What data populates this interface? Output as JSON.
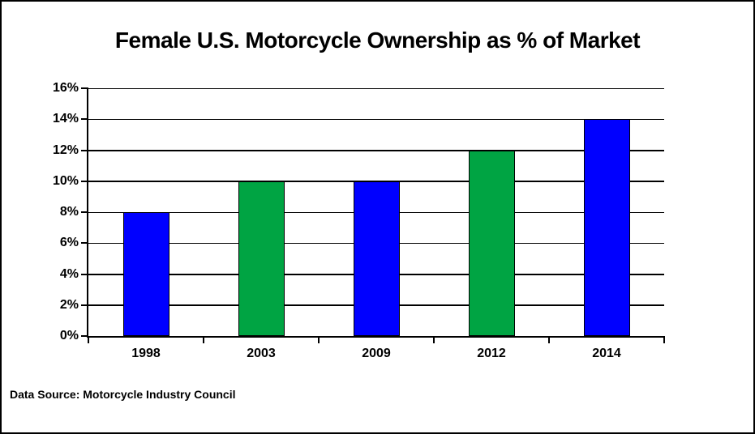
{
  "chart_data": {
    "type": "bar",
    "title": "Female U.S. Motorcycle Ownership as % of Market",
    "categories": [
      "1998",
      "2003",
      "2009",
      "2012",
      "2014"
    ],
    "values": [
      8,
      10,
      10,
      12,
      14
    ],
    "bar_colors": [
      "#0000FF",
      "#00A443",
      "#0000FF",
      "#00A443",
      "#0000FF"
    ],
    "xlabel": "",
    "ylabel": "",
    "ylim": [
      0,
      16
    ],
    "ytick_values": [
      0,
      2,
      4,
      6,
      8,
      10,
      12,
      14,
      16
    ],
    "ytick_labels": [
      "0%",
      "2%",
      "4%",
      "6%",
      "8%",
      "10%",
      "12%",
      "14%",
      "16%"
    ],
    "grid": "horizontal",
    "legend_position": "none",
    "source_note": "Data Source: Motorcycle Industry Council",
    "colors": {
      "bar_blue": "#0000FF",
      "bar_green": "#00A443",
      "axis": "#000000",
      "gridline": "#000000",
      "text": "#000000",
      "background": "#FFFFFF",
      "border": "#000000"
    }
  }
}
